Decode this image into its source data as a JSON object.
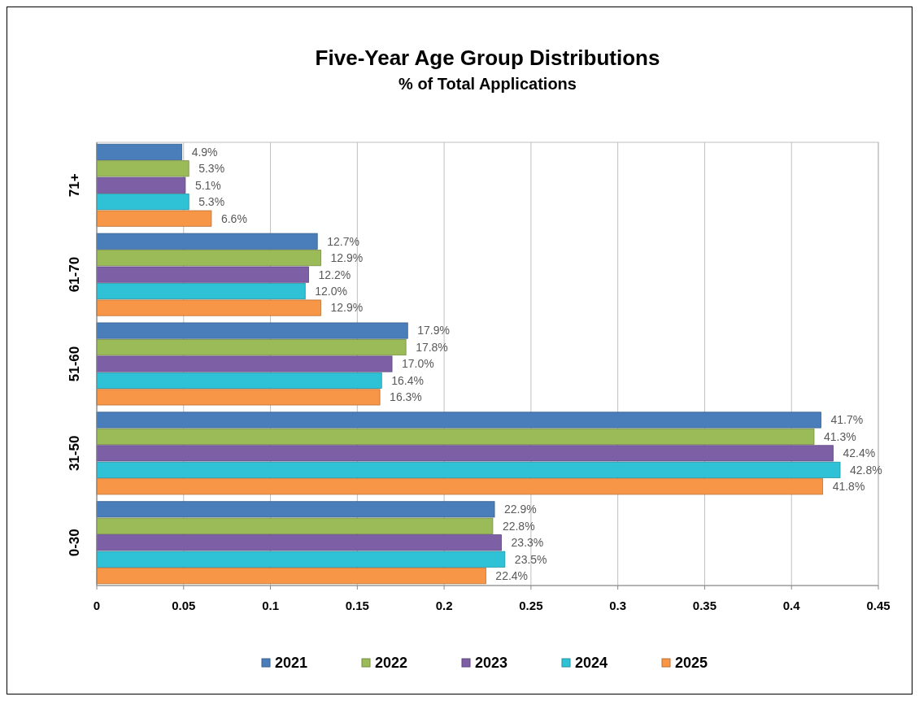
{
  "chart_data": {
    "type": "bar",
    "orientation": "horizontal",
    "title": "Five-Year Age Group Distributions",
    "subtitle": "% of Total Applications",
    "categories": [
      "71+",
      "61-70",
      "51-60",
      "31-50",
      "0-30"
    ],
    "series": [
      {
        "name": "2021",
        "color": "#4a7ebb",
        "values": [
          0.049,
          0.127,
          0.179,
          0.417,
          0.229
        ],
        "value_labels": [
          "4.9%",
          "12.7%",
          "17.9%",
          "41.7%",
          "22.9%"
        ]
      },
      {
        "name": "2022",
        "color": "#9bbb59",
        "values": [
          0.053,
          0.129,
          0.178,
          0.413,
          0.228
        ],
        "value_labels": [
          "5.3%",
          "12.9%",
          "17.8%",
          "41.3%",
          "22.8%"
        ]
      },
      {
        "name": "2023",
        "color": "#7d5fa6",
        "values": [
          0.051,
          0.122,
          0.17,
          0.424,
          0.233
        ],
        "value_labels": [
          "5.1%",
          "12.2%",
          "17.0%",
          "42.4%",
          "23.3%"
        ]
      },
      {
        "name": "2024",
        "color": "#2fc2d6",
        "values": [
          0.053,
          0.12,
          0.164,
          0.428,
          0.235
        ],
        "value_labels": [
          "5.3%",
          "12.0%",
          "16.4%",
          "42.8%",
          "23.5%"
        ]
      },
      {
        "name": "2025",
        "color": "#f79646",
        "values": [
          0.066,
          0.129,
          0.163,
          0.418,
          0.224
        ],
        "value_labels": [
          "6.6%",
          "12.9%",
          "16.3%",
          "41.8%",
          "22.4%"
        ]
      }
    ],
    "xlim": [
      0,
      0.45
    ],
    "xticks": [
      0,
      0.05,
      0.1,
      0.15,
      0.2,
      0.25,
      0.3,
      0.35,
      0.4,
      0.45
    ],
    "grid": "x",
    "legend": "bottom"
  }
}
